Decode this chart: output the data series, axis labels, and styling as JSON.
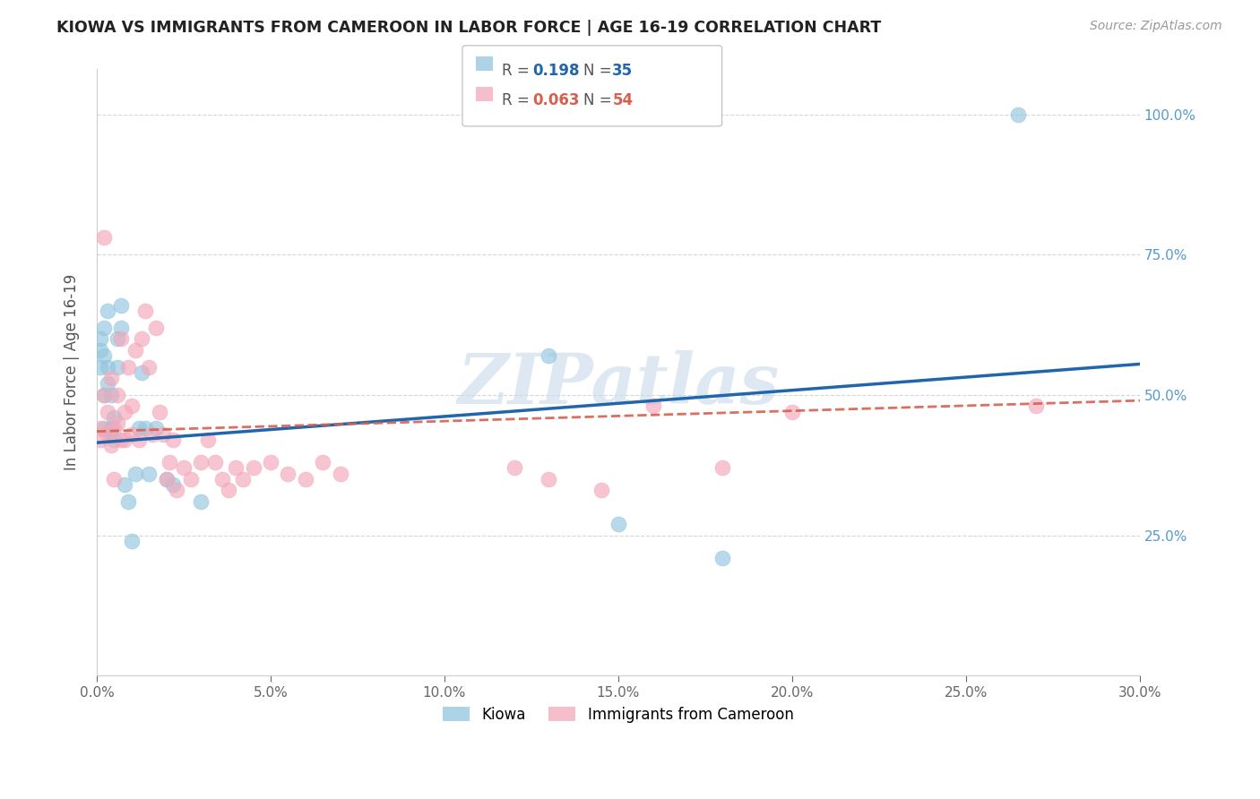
{
  "title": "KIOWA VS IMMIGRANTS FROM CAMEROON IN LABOR FORCE | AGE 16-19 CORRELATION CHART",
  "source": "Source: ZipAtlas.com",
  "ylabel": "In Labor Force | Age 16-19",
  "xlim": [
    0.0,
    0.3
  ],
  "ylim": [
    0.0,
    1.08
  ],
  "xtick_labels": [
    "0.0%",
    "5.0%",
    "10.0%",
    "15.0%",
    "20.0%",
    "25.0%",
    "30.0%"
  ],
  "xtick_values": [
    0.0,
    0.05,
    0.1,
    0.15,
    0.2,
    0.25,
    0.3
  ],
  "ytick_labels": [
    "25.0%",
    "50.0%",
    "75.0%",
    "100.0%"
  ],
  "ytick_values": [
    0.25,
    0.5,
    0.75,
    1.0
  ],
  "blue_color": "#92c5de",
  "pink_color": "#f4a7b9",
  "blue_line_color": "#2166ac",
  "pink_line_color": "#d6604d",
  "watermark": "ZIPatlas",
  "watermark_color": "#c8daea",
  "background_color": "#ffffff",
  "kiowa_x": [
    0.001,
    0.001,
    0.001,
    0.002,
    0.002,
    0.002,
    0.002,
    0.003,
    0.003,
    0.003,
    0.004,
    0.004,
    0.004,
    0.005,
    0.005,
    0.006,
    0.006,
    0.007,
    0.007,
    0.008,
    0.009,
    0.01,
    0.011,
    0.012,
    0.013,
    0.014,
    0.015,
    0.017,
    0.02,
    0.022,
    0.03,
    0.13,
    0.15,
    0.18,
    0.265
  ],
  "kiowa_y": [
    0.58,
    0.55,
    0.6,
    0.57,
    0.62,
    0.5,
    0.44,
    0.52,
    0.55,
    0.65,
    0.44,
    0.5,
    0.43,
    0.42,
    0.46,
    0.55,
    0.6,
    0.62,
    0.66,
    0.34,
    0.31,
    0.24,
    0.36,
    0.44,
    0.54,
    0.44,
    0.36,
    0.44,
    0.35,
    0.34,
    0.31,
    0.57,
    0.27,
    0.21,
    1.0
  ],
  "cameroon_x": [
    0.001,
    0.001,
    0.002,
    0.002,
    0.003,
    0.003,
    0.004,
    0.004,
    0.005,
    0.005,
    0.006,
    0.006,
    0.007,
    0.007,
    0.008,
    0.008,
    0.009,
    0.01,
    0.01,
    0.011,
    0.012,
    0.013,
    0.014,
    0.015,
    0.016,
    0.017,
    0.018,
    0.019,
    0.02,
    0.021,
    0.022,
    0.023,
    0.025,
    0.027,
    0.03,
    0.032,
    0.034,
    0.036,
    0.038,
    0.04,
    0.042,
    0.045,
    0.05,
    0.055,
    0.06,
    0.065,
    0.07,
    0.12,
    0.13,
    0.145,
    0.16,
    0.18,
    0.2,
    0.27
  ],
  "cameroon_y": [
    0.44,
    0.42,
    0.5,
    0.78,
    0.43,
    0.47,
    0.41,
    0.53,
    0.44,
    0.35,
    0.45,
    0.5,
    0.6,
    0.42,
    0.47,
    0.42,
    0.55,
    0.43,
    0.48,
    0.58,
    0.42,
    0.6,
    0.65,
    0.55,
    0.43,
    0.62,
    0.47,
    0.43,
    0.35,
    0.38,
    0.42,
    0.33,
    0.37,
    0.35,
    0.38,
    0.42,
    0.38,
    0.35,
    0.33,
    0.37,
    0.35,
    0.37,
    0.38,
    0.36,
    0.35,
    0.38,
    0.36,
    0.37,
    0.35,
    0.33,
    0.48,
    0.37,
    0.47,
    0.48
  ],
  "blue_trend_x0": 0.0,
  "blue_trend_y0": 0.415,
  "blue_trend_x1": 0.3,
  "blue_trend_y1": 0.555,
  "pink_trend_x0": 0.0,
  "pink_trend_y0": 0.435,
  "pink_trend_x1": 0.3,
  "pink_trend_y1": 0.49
}
